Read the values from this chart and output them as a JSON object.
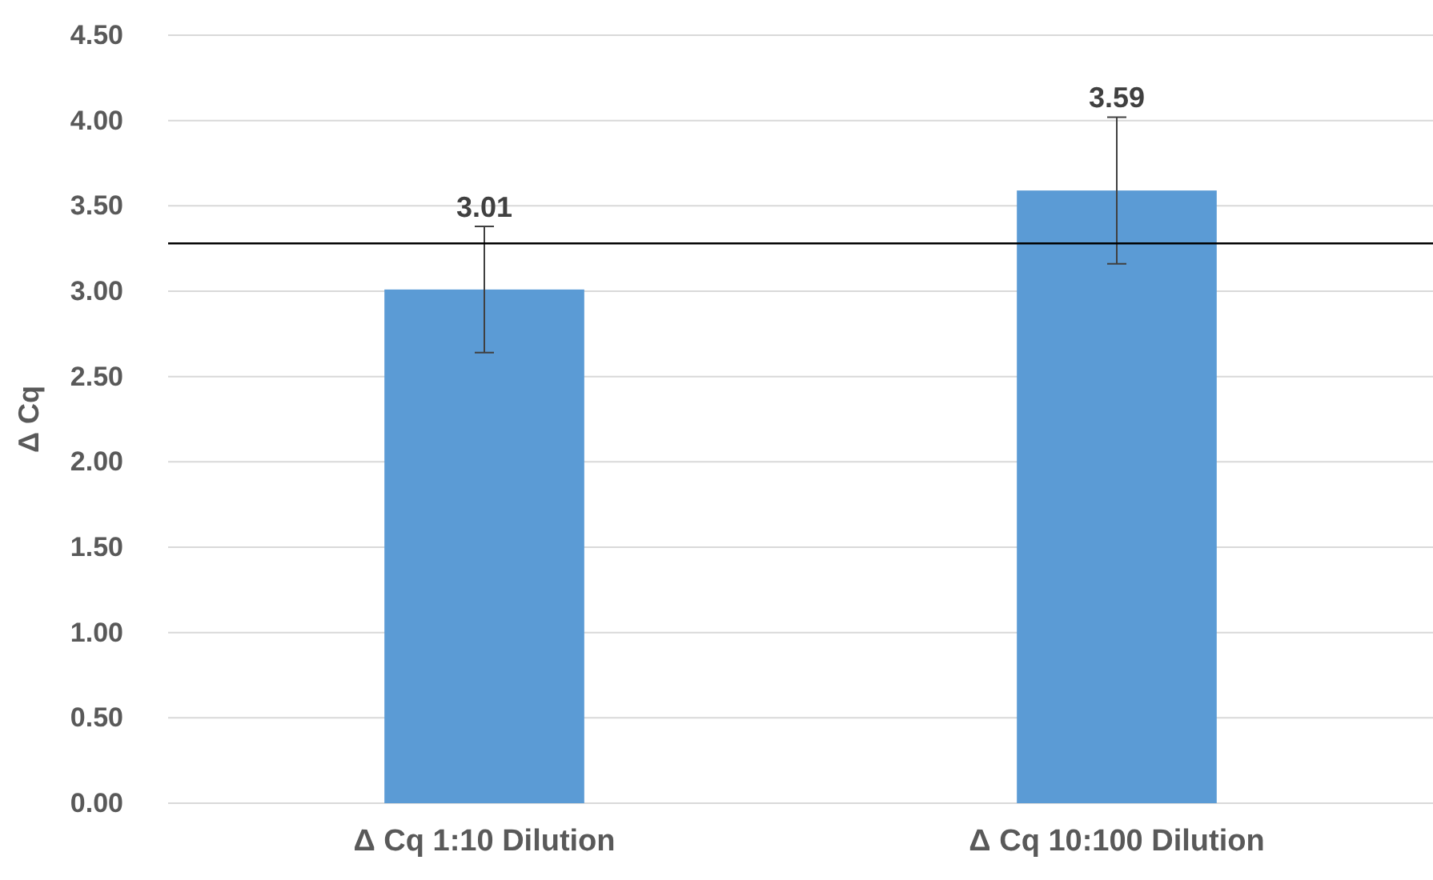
{
  "chart_data": {
    "type": "bar",
    "ylabel": "Δ Cq",
    "categories": [
      "Δ Cq 1:10 Dilution",
      "Δ Cq 10:100 Dilution"
    ],
    "series": [
      {
        "color": "#5b9bd5",
        "values": [
          3.01,
          3.59
        ],
        "errors": [
          0.37,
          0.43
        ]
      }
    ],
    "data_labels": true,
    "ylim": [
      0,
      4.5
    ],
    "yticks": [
      {
        "value": 0,
        "label": "0.00"
      },
      {
        "value": 0.5,
        "label": "0.50"
      },
      {
        "value": 1,
        "label": "1.00"
      },
      {
        "value": 1.5,
        "label": "1.50"
      },
      {
        "value": 2,
        "label": "2.00"
      },
      {
        "value": 2.5,
        "label": "2.50"
      },
      {
        "value": 3,
        "label": "3.00"
      },
      {
        "value": 3.5,
        "label": "3.50"
      },
      {
        "value": 4,
        "label": "4.00"
      },
      {
        "value": 4.5,
        "label": "4.50"
      }
    ],
    "grid": "y",
    "ref_lines": [
      {
        "axis": "y",
        "value": 3.28,
        "color": "#000000"
      }
    ]
  }
}
